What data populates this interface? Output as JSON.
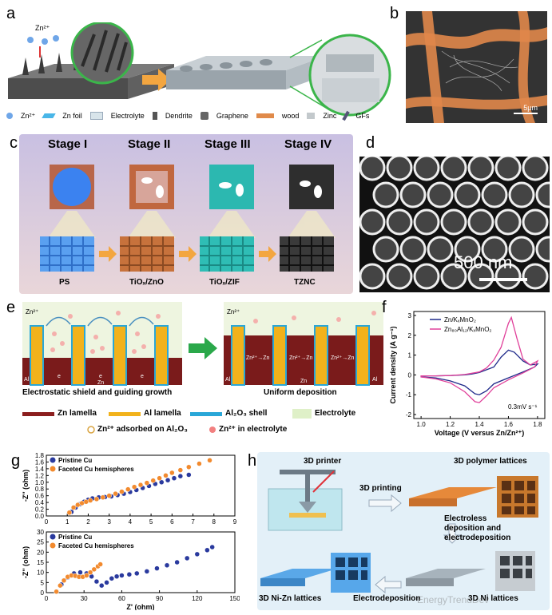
{
  "panels": {
    "a": {
      "label": "a",
      "ion": "Zn²⁺",
      "legend": [
        {
          "icon": "zn-ion-icon",
          "text": "Zn²⁺"
        },
        {
          "icon": "zn-foil-icon",
          "text": "Zn foil"
        },
        {
          "icon": "electrolyte-icon",
          "text": "Electrolyte"
        },
        {
          "icon": "dendrite-icon",
          "text": "Dendrite"
        },
        {
          "icon": "graphene-icon",
          "text": "Graphene"
        },
        {
          "icon": "wood-icon",
          "text": "wood"
        },
        {
          "icon": "zinc-icon",
          "text": "Zinc"
        },
        {
          "icon": "gfs-icon",
          "text": "GFs"
        }
      ]
    },
    "b": {
      "label": "b",
      "scale": "5μm"
    },
    "c": {
      "label": "c",
      "stages": [
        "Stage I",
        "Stage II",
        "Stage III",
        "Stage IV"
      ],
      "materials": [
        "PS",
        "TiOₓ/ZnO",
        "TiOₓ/ZIF",
        "TZNC"
      ]
    },
    "d": {
      "label": "d",
      "scale": "500 nm"
    },
    "e": {
      "label": "e",
      "left_title": "Electrostatic shield and guiding growth",
      "right_title": "Uniform deposition",
      "zn_ion": "Zn²⁺",
      "al": "Al",
      "zn": "Zn",
      "e_mark": "e",
      "zn_label": "Zn²⁺→Zn",
      "legend": [
        {
          "color": "#8b1e1e",
          "text": "Zn lamella"
        },
        {
          "color": "#f2b21b",
          "text": "Al lamella"
        },
        {
          "color": "#29a7d8",
          "text": "Al₂O₃ shell"
        },
        {
          "color": "#dff0c8",
          "text": "Electrolyte"
        }
      ],
      "legend2": [
        "Zn²⁺ adsorbed on Al₂O₃",
        "Zn²⁺ in electrolyte"
      ]
    },
    "f": {
      "label": "f"
    },
    "g": {
      "label": "g"
    },
    "h": {
      "label": "h",
      "printer": "3D printer",
      "printing": "3D printing",
      "polymer": "3D polymer lattices",
      "electroless": "Electroless",
      "deposition": "deposition and",
      "electrodeposition_line": "electrodeposition",
      "nizn": "3D Ni-Zn lattices",
      "electrodep": "Electrodeposition",
      "ni": "3D Ni lattices",
      "watermark": "EnergyTrendDev"
    }
  },
  "chart_data": [
    {
      "id": "f",
      "type": "line",
      "xlabel": "Voltage (V versus Zn/Zn²⁺)",
      "ylabel": "Current density (A g⁻¹)",
      "xlim": [
        0.95,
        1.85
      ],
      "ylim": [
        -2.2,
        3.2
      ],
      "xticks": [
        "1.0",
        "1.2",
        "1.4",
        "1.6",
        "1.8"
      ],
      "yticks": [
        "-2",
        "-1",
        "0",
        "1",
        "2",
        "3"
      ],
      "annotation": "0.3mV s⁻¹",
      "series": [
        {
          "name": "Zn/KₓMnO₂",
          "color": "#1f2a8a",
          "x": [
            1.0,
            1.1,
            1.2,
            1.3,
            1.35,
            1.4,
            1.5,
            1.55,
            1.6,
            1.64,
            1.7,
            1.75,
            1.8,
            1.78,
            1.7,
            1.6,
            1.5,
            1.45,
            1.4,
            1.37,
            1.3,
            1.2,
            1.1,
            1.0
          ],
          "y": [
            -0.05,
            -0.05,
            -0.03,
            0.0,
            0.05,
            0.12,
            0.4,
            0.9,
            1.25,
            1.15,
            0.7,
            0.5,
            0.55,
            0.4,
            0.15,
            -0.15,
            -0.45,
            -0.8,
            -1.0,
            -0.95,
            -0.55,
            -0.3,
            -0.15,
            -0.1
          ]
        },
        {
          "name": "Zn₈₀Al₁₂/KₓMnO₂",
          "color": "#e0409a",
          "x": [
            1.0,
            1.1,
            1.2,
            1.3,
            1.4,
            1.45,
            1.5,
            1.55,
            1.6,
            1.62,
            1.66,
            1.7,
            1.75,
            1.8,
            1.78,
            1.7,
            1.6,
            1.5,
            1.45,
            1.4,
            1.37,
            1.3,
            1.2,
            1.1,
            1.0
          ],
          "y": [
            -0.05,
            -0.05,
            -0.03,
            0.02,
            0.15,
            0.35,
            0.75,
            1.4,
            2.6,
            2.9,
            1.8,
            0.8,
            0.5,
            0.7,
            0.4,
            0.1,
            -0.25,
            -0.65,
            -1.05,
            -1.4,
            -1.35,
            -0.85,
            -0.4,
            -0.2,
            -0.1
          ]
        }
      ]
    },
    {
      "id": "g-top",
      "type": "scatter",
      "xlabel": "",
      "ylabel": "-Z'' (ohm)",
      "xlim": [
        0,
        9
      ],
      "ylim": [
        0,
        1.8
      ],
      "xticks": [
        "0",
        "1",
        "2",
        "3",
        "4",
        "5",
        "6",
        "7",
        "8",
        "9"
      ],
      "yticks": [
        "0.0",
        "0.2",
        "0.4",
        "0.6",
        "0.8",
        "1.0",
        "1.2",
        "1.4",
        "1.6",
        "1.8"
      ],
      "series": [
        {
          "name": "Pristine Cu",
          "color": "#2a3a9e",
          "x": [
            1.2,
            1.4,
            1.6,
            1.8,
            2.0,
            2.2,
            2.5,
            2.8,
            3.1,
            3.4,
            3.7,
            4.0,
            4.3,
            4.6,
            4.9,
            5.2,
            5.5,
            5.8,
            6.1,
            6.4,
            6.8
          ],
          "y": [
            0.12,
            0.25,
            0.35,
            0.42,
            0.48,
            0.52,
            0.55,
            0.56,
            0.58,
            0.62,
            0.66,
            0.71,
            0.77,
            0.83,
            0.89,
            0.95,
            1.0,
            1.06,
            1.12,
            1.18,
            1.22
          ]
        },
        {
          "name": "Faceted Cu hemispheres",
          "color": "#f28a2e",
          "x": [
            1.1,
            1.3,
            1.5,
            1.7,
            1.9,
            2.1,
            2.4,
            2.7,
            3.0,
            3.3,
            3.6,
            3.9,
            4.2,
            4.5,
            4.8,
            5.1,
            5.4,
            5.7,
            6.0,
            6.4,
            6.8,
            7.3,
            7.8
          ],
          "y": [
            0.1,
            0.25,
            0.33,
            0.38,
            0.42,
            0.46,
            0.5,
            0.55,
            0.6,
            0.66,
            0.72,
            0.79,
            0.86,
            0.92,
            0.98,
            1.05,
            1.12,
            1.2,
            1.28,
            1.36,
            1.45,
            1.55,
            1.65
          ]
        }
      ]
    },
    {
      "id": "g-bottom",
      "type": "scatter",
      "xlabel": "Z' (ohm)",
      "ylabel": "-Z'' (ohm)",
      "xlim": [
        0,
        150
      ],
      "ylim": [
        0,
        30
      ],
      "xticks": [
        "0",
        "30",
        "60",
        "90",
        "120",
        "150"
      ],
      "yticks": [
        "0",
        "5",
        "10",
        "15",
        "20",
        "25",
        "30"
      ],
      "series": [
        {
          "name": "Pristine Cu",
          "color": "#2a3a9e",
          "x": [
            8,
            12,
            17,
            22,
            27,
            32,
            36,
            40,
            44,
            48,
            52,
            56,
            60,
            66,
            72,
            80,
            88,
            96,
            104,
            112,
            120,
            128,
            132
          ],
          "y": [
            0.5,
            4,
            7.5,
            9.5,
            10,
            9.5,
            8,
            5.5,
            3.5,
            5,
            7,
            8,
            8.5,
            9,
            9.5,
            10.5,
            12,
            13.5,
            15,
            17,
            19,
            21,
            22.5
          ]
        },
        {
          "name": "Faceted Cu hemispheres",
          "color": "#f28a2e",
          "x": [
            8,
            11,
            14,
            17,
            20,
            23,
            26,
            29,
            32,
            35,
            38,
            41,
            43
          ],
          "y": [
            0.5,
            3.5,
            6,
            7.8,
            8.5,
            8.3,
            7.8,
            7.8,
            8.5,
            10,
            11.5,
            13,
            14
          ]
        }
      ]
    }
  ]
}
